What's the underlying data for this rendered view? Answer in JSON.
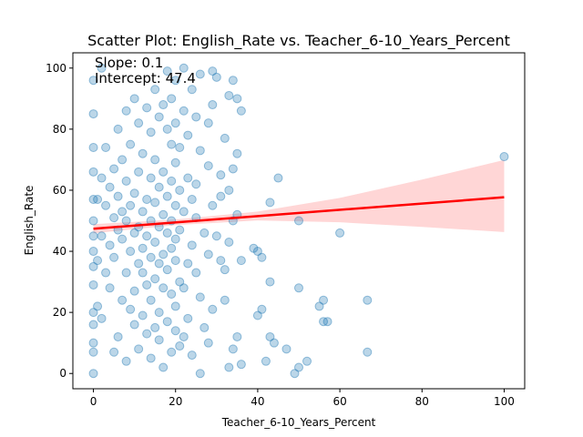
{
  "chart_data": {
    "type": "scatter",
    "title": "Scatter Plot: English_Rate vs. Teacher_6-10_Years_Percent",
    "xlabel": "Teacher_6-10_Years_Percent",
    "ylabel": "English_Rate",
    "xlim": [
      -5,
      105
    ],
    "ylim": [
      -5,
      105
    ],
    "xticks": [
      0,
      20,
      40,
      60,
      80,
      100
    ],
    "yticks": [
      0,
      20,
      40,
      60,
      80,
      100
    ],
    "grid": false,
    "annotations": {
      "slope": "Slope: 0.1",
      "intercept": "Intercept: 47.4"
    },
    "regression": {
      "slope": 0.103,
      "intercept": 47.4,
      "x_range": [
        0,
        100
      ],
      "ci_at_x": [
        [
          0,
          45.9,
          48.9
        ],
        [
          20,
          48.6,
          50.4
        ],
        [
          40,
          50.1,
          53.0
        ],
        [
          60,
          49.5,
          57.5
        ],
        [
          80,
          48.0,
          63.5
        ],
        [
          100,
          46.3,
          69.9
        ]
      ]
    },
    "colors": {
      "points": "#1f77b4",
      "regression_line": "#ff0000",
      "ci_band": "#ff9999"
    },
    "series": [
      {
        "points": [
          [
            100,
            71
          ],
          [
            66.7,
            24
          ],
          [
            66.7,
            7
          ],
          [
            60,
            46
          ],
          [
            57,
            17
          ],
          [
            56,
            17
          ],
          [
            56,
            24
          ],
          [
            55,
            22
          ],
          [
            52,
            4
          ],
          [
            50,
            50
          ],
          [
            50,
            28
          ],
          [
            50,
            2
          ],
          [
            49,
            0
          ],
          [
            47,
            8
          ],
          [
            45,
            64
          ],
          [
            44,
            10
          ],
          [
            43,
            56
          ],
          [
            43,
            30
          ],
          [
            43,
            12
          ],
          [
            42,
            4
          ],
          [
            41,
            38
          ],
          [
            41,
            21
          ],
          [
            40,
            40
          ],
          [
            40,
            19
          ],
          [
            39,
            41
          ],
          [
            36,
            86
          ],
          [
            36,
            37
          ],
          [
            36,
            3
          ],
          [
            35,
            90
          ],
          [
            35,
            72
          ],
          [
            35,
            52
          ],
          [
            35,
            12
          ],
          [
            34,
            96
          ],
          [
            34,
            67
          ],
          [
            34,
            50
          ],
          [
            34,
            8
          ],
          [
            33,
            91
          ],
          [
            33,
            60
          ],
          [
            33,
            43
          ],
          [
            33,
            2
          ],
          [
            32,
            77
          ],
          [
            32,
            34
          ],
          [
            32,
            24
          ],
          [
            31,
            65
          ],
          [
            31,
            58
          ],
          [
            31,
            37
          ],
          [
            30,
            97
          ],
          [
            30,
            45
          ],
          [
            29,
            99
          ],
          [
            29,
            88
          ],
          [
            29,
            55
          ],
          [
            29,
            21
          ],
          [
            28,
            82
          ],
          [
            28,
            68
          ],
          [
            28,
            39
          ],
          [
            28,
            10
          ],
          [
            27,
            46
          ],
          [
            27,
            15
          ],
          [
            26,
            98
          ],
          [
            26,
            73
          ],
          [
            26,
            25
          ],
          [
            26,
            0
          ],
          [
            25,
            84
          ],
          [
            25,
            62
          ],
          [
            25,
            51
          ],
          [
            25,
            33
          ],
          [
            24,
            93
          ],
          [
            24,
            57
          ],
          [
            24,
            42
          ],
          [
            24,
            6
          ],
          [
            23,
            78
          ],
          [
            23,
            64
          ],
          [
            23,
            36
          ],
          [
            23,
            18
          ],
          [
            22,
            100
          ],
          [
            22,
            86
          ],
          [
            22,
            53
          ],
          [
            22,
            28
          ],
          [
            22,
            12
          ],
          [
            21,
            74
          ],
          [
            21,
            60
          ],
          [
            21,
            47
          ],
          [
            21,
            30
          ],
          [
            21,
            9
          ],
          [
            20,
            96
          ],
          [
            20,
            82
          ],
          [
            20,
            69
          ],
          [
            20,
            55
          ],
          [
            20,
            44
          ],
          [
            20,
            37
          ],
          [
            20,
            22
          ],
          [
            20,
            14
          ],
          [
            19,
            90
          ],
          [
            19,
            75
          ],
          [
            19,
            63
          ],
          [
            19,
            50
          ],
          [
            19,
            41
          ],
          [
            19,
            26
          ],
          [
            19,
            7
          ],
          [
            18,
            99
          ],
          [
            18,
            80
          ],
          [
            18,
            58
          ],
          [
            18,
            46
          ],
          [
            18,
            34
          ],
          [
            18,
            17
          ],
          [
            17,
            88
          ],
          [
            17,
            66
          ],
          [
            17,
            52
          ],
          [
            17,
            39
          ],
          [
            17,
            28
          ],
          [
            17,
            2
          ],
          [
            16,
            84
          ],
          [
            16,
            61
          ],
          [
            16,
            48
          ],
          [
            16,
            36
          ],
          [
            16,
            20
          ],
          [
            16,
            11
          ],
          [
            15,
            93
          ],
          [
            15,
            70
          ],
          [
            15,
            56
          ],
          [
            15,
            43
          ],
          [
            15,
            31
          ],
          [
            15,
            15
          ],
          [
            14,
            79
          ],
          [
            14,
            64
          ],
          [
            14,
            50
          ],
          [
            14,
            38
          ],
          [
            14,
            24
          ],
          [
            14,
            5
          ],
          [
            13,
            87
          ],
          [
            13,
            57
          ],
          [
            13,
            45
          ],
          [
            13,
            29
          ],
          [
            13,
            13
          ],
          [
            12,
            72
          ],
          [
            12,
            53
          ],
          [
            12,
            41
          ],
          [
            12,
            33
          ],
          [
            12,
            19
          ],
          [
            11,
            82
          ],
          [
            11,
            66
          ],
          [
            11,
            48
          ],
          [
            11,
            36
          ],
          [
            11,
            8
          ],
          [
            10,
            90
          ],
          [
            10,
            59
          ],
          [
            10,
            46
          ],
          [
            10,
            27
          ],
          [
            10,
            16
          ],
          [
            9,
            75
          ],
          [
            9,
            55
          ],
          [
            9,
            40
          ],
          [
            9,
            21
          ],
          [
            8,
            86
          ],
          [
            8,
            63
          ],
          [
            8,
            50
          ],
          [
            8,
            33
          ],
          [
            8,
            4
          ],
          [
            7,
            70
          ],
          [
            7,
            53
          ],
          [
            7,
            44
          ],
          [
            7,
            24
          ],
          [
            6,
            80
          ],
          [
            6,
            58
          ],
          [
            6,
            47
          ],
          [
            6,
            12
          ],
          [
            5,
            67
          ],
          [
            5,
            51
          ],
          [
            5,
            38
          ],
          [
            5,
            7
          ],
          [
            4,
            61
          ],
          [
            4,
            42
          ],
          [
            4,
            28
          ],
          [
            3,
            74
          ],
          [
            3,
            55
          ],
          [
            3,
            33
          ],
          [
            2,
            100
          ],
          [
            2,
            64
          ],
          [
            2,
            45
          ],
          [
            2,
            18
          ],
          [
            1,
            57
          ],
          [
            1,
            37
          ],
          [
            1,
            22
          ],
          [
            0,
            96
          ],
          [
            0,
            85
          ],
          [
            0,
            74
          ],
          [
            0,
            66
          ],
          [
            0,
            57
          ],
          [
            0,
            50
          ],
          [
            0,
            45
          ],
          [
            0,
            40
          ],
          [
            0,
            35
          ],
          [
            0,
            29
          ],
          [
            0,
            20
          ],
          [
            0,
            16
          ],
          [
            0,
            10
          ],
          [
            0,
            7
          ],
          [
            0,
            0
          ]
        ]
      }
    ]
  }
}
